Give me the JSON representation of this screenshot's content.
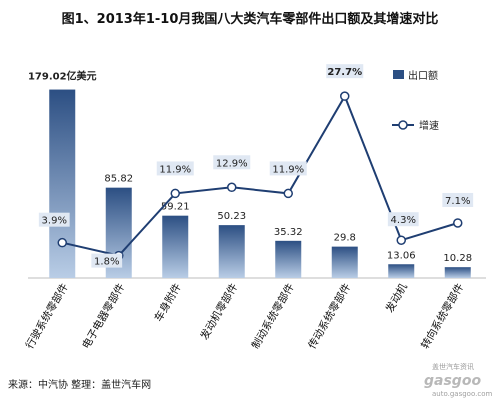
{
  "title": "图1、2013年1-10月我国八大类汽车零部件出口额及其增速对比",
  "chart_data": {
    "type": "bar",
    "categories": [
      "行驶系统零部件",
      "电子电器零部件",
      "车身附件",
      "发动机零部件",
      "制动系统零部件",
      "传动系统零部件",
      "发动机",
      "转向系统零部件"
    ],
    "series": [
      {
        "name": "出口额",
        "type": "bar",
        "values": [
          179.02,
          85.82,
          59.21,
          50.23,
          35.32,
          29.8,
          13.06,
          10.28
        ]
      },
      {
        "name": "增速",
        "type": "line",
        "values": [
          3.9,
          1.8,
          11.9,
          12.9,
          11.9,
          27.7,
          4.3,
          7.1
        ]
      }
    ],
    "bar_labels": [
      "179.02亿美元",
      "85.82",
      "59.21",
      "50.23",
      "35.32",
      "29.8",
      "13.06",
      "10.28"
    ],
    "line_labels": [
      "3.9%",
      "1.8%",
      "11.9%",
      "12.9%",
      "11.9%",
      "27.7%",
      "4.3%",
      "7.1%"
    ],
    "bar_ylim": [
      0,
      190
    ],
    "line_ylim": [
      -2,
      30
    ],
    "colors": {
      "bar_top": "#2c4f83",
      "bar_bottom": "#b9cde6",
      "line": "#1f3e72",
      "label_box": "#e0e8f3"
    }
  },
  "legend": {
    "bars": "出口额",
    "line": "增速"
  },
  "source": "来源：中汽协  整理：盖世汽车网",
  "watermark": {
    "top": "盖世汽车资讯",
    "logo": "gasgoo",
    "url": "auto.gasgoo.com"
  }
}
